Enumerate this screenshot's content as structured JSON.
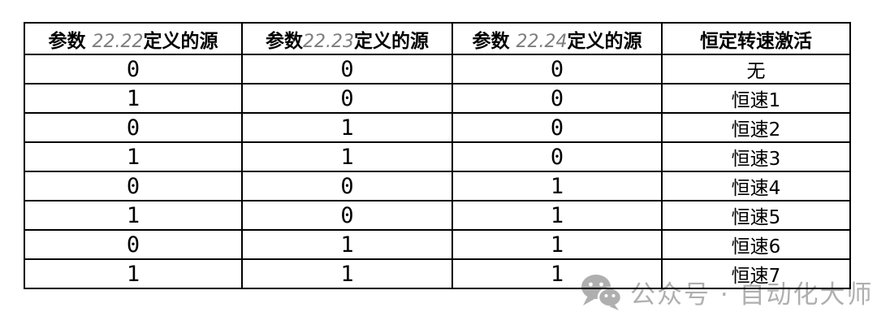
{
  "table": {
    "headers": [
      {
        "prefix": "参数 ",
        "param": "22.22",
        "suffix": "定义的源"
      },
      {
        "prefix": "参数",
        "param": "22.23",
        "suffix": "定义的源"
      },
      {
        "prefix": "参数 ",
        "param": "22.24",
        "suffix": "定义的源"
      },
      {
        "label": "恒定转速激活"
      }
    ],
    "rows": [
      [
        "0",
        "0",
        "0",
        "无"
      ],
      [
        "1",
        "0",
        "0",
        "恒速1"
      ],
      [
        "0",
        "1",
        "0",
        "恒速2"
      ],
      [
        "1",
        "1",
        "0",
        "恒速3"
      ],
      [
        "0",
        "0",
        "1",
        "恒速4"
      ],
      [
        "1",
        "0",
        "1",
        "恒速5"
      ],
      [
        "0",
        "1",
        "1",
        "恒速6"
      ],
      [
        "1",
        "1",
        "1",
        "恒速7"
      ]
    ]
  },
  "watermark": {
    "icon": "wechat-icon",
    "text": "公众号 · 自动化大师"
  },
  "colors": {
    "border": "#000000",
    "header_text": "#000000",
    "param_number_gray": "#7d7d7d",
    "watermark_gray": "#afafaf",
    "background": "#ffffff"
  }
}
